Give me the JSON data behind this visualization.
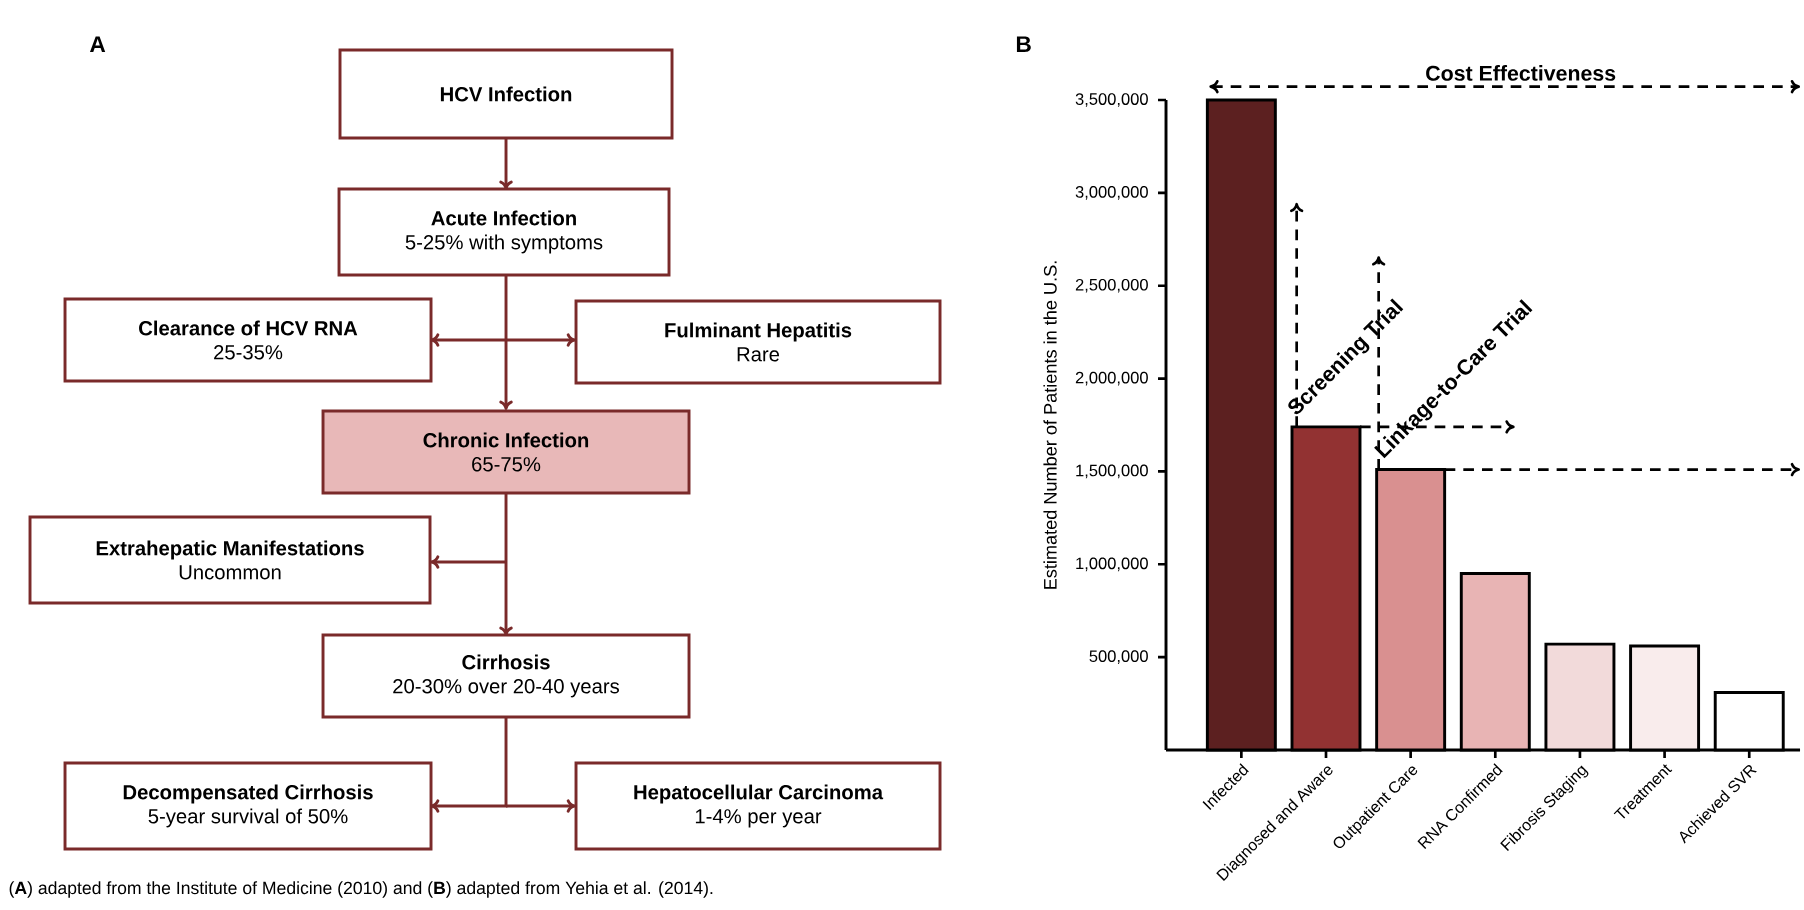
{
  "chart_data": [
    {
      "type": "other",
      "title": "A",
      "annotations": [
        "HCV Infection",
        "Acute Infection",
        "5-25% with symptoms",
        "Clearance of HCV RNA",
        "25-35%",
        "Fulminant Hepatitis",
        "Rare",
        "Chronic Infection",
        "65-75%",
        "Extrahepatic Manifestations",
        "Uncommon",
        "Cirrhosis",
        "20-30% over 20-40 years",
        "Decompensated Cirrhosis",
        "5-year survival of 50%",
        "Hepatocellular Carcinoma",
        "1-4% per year",
        "(**A**) adapted from the Institute of Medicine (2010) and (**B**) adapted from Yehia et al. (2014)."
      ]
    },
    {
      "type": "bar",
      "title": "B",
      "ylabel": "Estimated Number of Patients in the U.S.",
      "categories": [
        "Infected",
        "Diagnosed and Aware",
        "Outpatient Care",
        "RNA Confirmed",
        "Fibrosis Staging",
        "Treatment",
        "Achieved SVR"
      ],
      "values": [
        3500000,
        1740000,
        1510000,
        950000,
        570000,
        560000,
        310000
      ],
      "colors": [
        "#5c2020",
        "#923232",
        "#d99090",
        "#e8b4b4",
        "#f2dada",
        "#f9ecec",
        "#ffffff"
      ],
      "ylim": [
        0,
        3500000
      ],
      "yticks": [
        {
          "value": 500000,
          "label": "500,000"
        },
        {
          "value": 1000000,
          "label": "1,000,000"
        },
        {
          "value": 1500000,
          "label": "1,500,000"
        },
        {
          "value": 2000000,
          "label": "2,000,000"
        },
        {
          "value": 2500000,
          "label": "2,500,000"
        },
        {
          "value": 3000000,
          "label": "3,000,000"
        },
        {
          "value": 3500000,
          "label": "3,500,000"
        }
      ],
      "annotations": [
        "Cost Effectiveness",
        "Screening Trial",
        "Linkage-to-Care Trial"
      ]
    }
  ]
}
